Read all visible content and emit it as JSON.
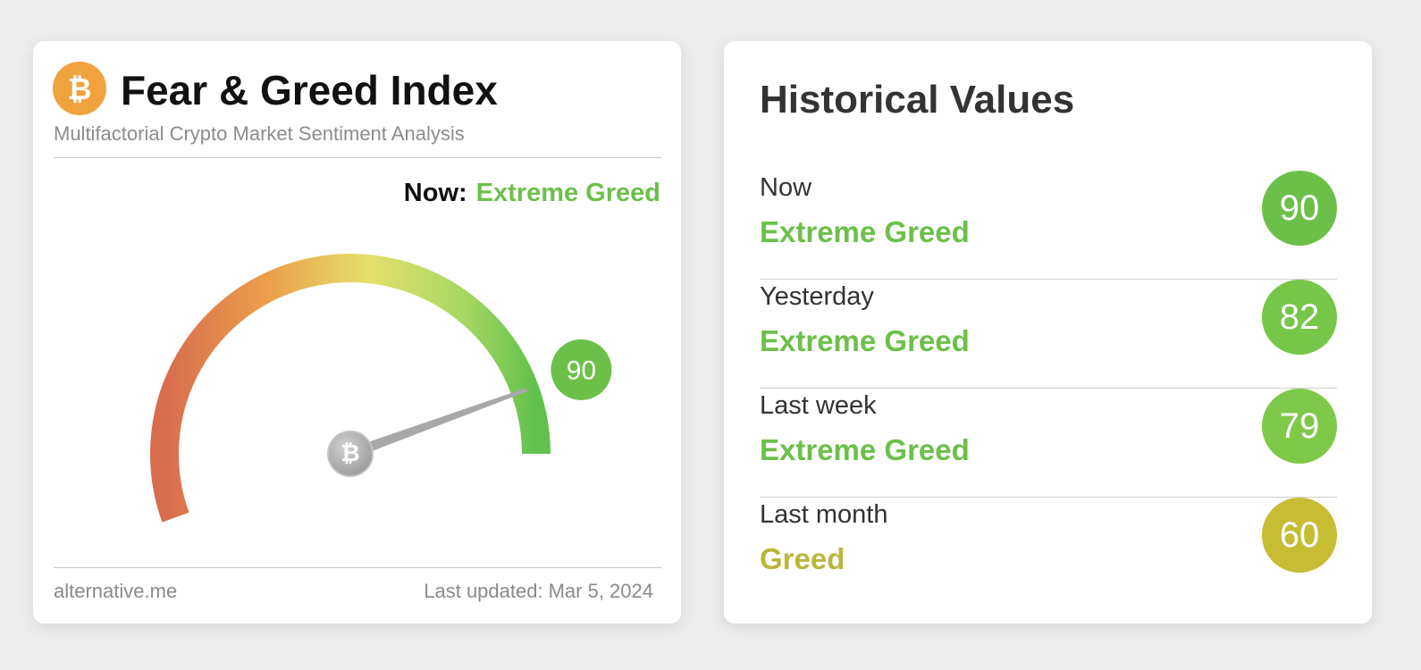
{
  "index_card": {
    "title": "Fear & Greed Index",
    "subtitle": "Multifactorial Crypto Market Sentiment Analysis",
    "logo_icon": "bitcoin-icon",
    "now_label": "Now:",
    "now_status": "Extreme Greed",
    "gauge": {
      "value": 90,
      "value_text": "90",
      "min": 0,
      "max": 100
    },
    "source": "alternative.me",
    "updated_prefix": "Last updated:",
    "updated_date": "Mar 5, 2024"
  },
  "historical": {
    "title": "Historical Values",
    "rows": [
      {
        "period": "Now",
        "status": "Extreme Greed",
        "value": "90",
        "color": "#6cc04a"
      },
      {
        "period": "Yesterday",
        "status": "Extreme Greed",
        "value": "82",
        "color": "#76c64a"
      },
      {
        "period": "Last week",
        "status": "Extreme Greed",
        "value": "79",
        "color": "#7ec94a"
      },
      {
        "period": "Last month",
        "status": "Greed",
        "value": "60",
        "color": "#c7bd35"
      }
    ]
  },
  "colors": {
    "extreme_greed": "#6cc04a",
    "greed": "#b9b73a",
    "bitcoin_orange": "#f0a23d"
  }
}
